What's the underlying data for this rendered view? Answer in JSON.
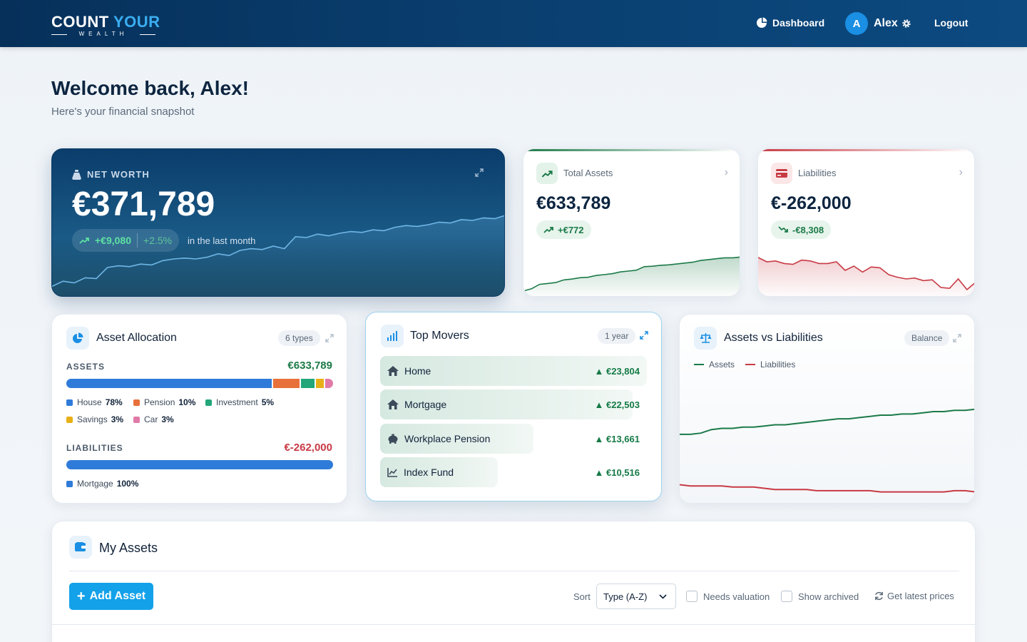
{
  "app": {
    "logo_part1": "COUNT",
    "logo_part2": "YOUR",
    "logo_sub": "WEALTH"
  },
  "nav": {
    "dashboard_label": "Dashboard",
    "avatar_letter": "A",
    "user_name": "Alex",
    "logout_label": "Logout"
  },
  "welcome": {
    "title": "Welcome back, Alex!",
    "subtitle": "Here's your financial snapshot"
  },
  "net_worth": {
    "label": "NET WORTH",
    "value": "€371,789",
    "change_abs": "+€9,080",
    "change_pct": "+2.5%",
    "period": "in the last month",
    "trend": [
      0.08,
      0.14,
      0.12,
      0.18,
      0.17,
      0.3,
      0.32,
      0.31,
      0.34,
      0.33,
      0.38,
      0.4,
      0.41,
      0.4,
      0.42,
      0.46,
      0.44,
      0.5,
      0.52,
      0.51,
      0.55,
      0.52,
      0.66,
      0.65,
      0.69,
      0.67,
      0.7,
      0.72,
      0.71,
      0.74,
      0.73,
      0.77,
      0.79,
      0.78,
      0.8,
      0.83,
      0.82,
      0.86,
      0.85,
      0.88,
      0.87,
      0.91
    ]
  },
  "total_assets": {
    "title": "Total Assets",
    "value": "€633,789",
    "change": "+€772",
    "color": "#1c7a48",
    "trend": [
      0.05,
      0.1,
      0.2,
      0.22,
      0.24,
      0.3,
      0.32,
      0.35,
      0.36,
      0.4,
      0.42,
      0.44,
      0.48,
      0.5,
      0.52,
      0.6,
      0.61,
      0.63,
      0.64,
      0.66,
      0.68,
      0.7,
      0.74,
      0.76,
      0.78,
      0.8,
      0.8,
      0.82
    ]
  },
  "liabilities": {
    "title": "Liabilities",
    "value": "€-262,000",
    "change": "-€8,308",
    "color": "#c83a44",
    "trend": [
      0.8,
      0.7,
      0.72,
      0.66,
      0.64,
      0.74,
      0.72,
      0.66,
      0.66,
      0.7,
      0.5,
      0.6,
      0.46,
      0.58,
      0.56,
      0.4,
      0.34,
      0.3,
      0.32,
      0.26,
      0.28,
      0.1,
      0.08,
      0.3,
      0.05,
      0.22
    ]
  },
  "allocation": {
    "title": "Asset Allocation",
    "types_pill": "6 types",
    "assets_label": "ASSETS",
    "assets_total": "€633,789",
    "asset_items": [
      {
        "name": "House",
        "pct": "78%",
        "value": 78,
        "color": "#2f7bd9"
      },
      {
        "name": "Pension",
        "pct": "10%",
        "value": 10,
        "color": "#e8703a"
      },
      {
        "name": "Investment",
        "pct": "5%",
        "value": 5,
        "color": "#22a67a"
      },
      {
        "name": "Savings",
        "pct": "3%",
        "value": 3,
        "color": "#e8b018"
      },
      {
        "name": "Car",
        "pct": "3%",
        "value": 3,
        "color": "#e07aa8"
      }
    ],
    "liabilities_label": "LIABILITIES",
    "liabilities_total": "€-262,000",
    "liability_items": [
      {
        "name": "Mortgage",
        "pct": "100%",
        "value": 100,
        "color": "#2f7bd9"
      }
    ]
  },
  "movers": {
    "title": "Top Movers",
    "period_pill": "1 year",
    "items": [
      {
        "name": "Home",
        "value": "▲ €23,804",
        "icon": "home-icon",
        "amount": 23804
      },
      {
        "name": "Mortgage",
        "value": "▲ €22,503",
        "icon": "home-icon",
        "amount": 22503
      },
      {
        "name": "Workplace Pension",
        "value": "▲ €13,661",
        "icon": "piggy-bank-icon",
        "amount": 13661
      },
      {
        "name": "Index Fund",
        "value": "▲ €10,516",
        "icon": "line-chart-icon",
        "amount": 10516
      }
    ]
  },
  "avl": {
    "title": "Assets vs Liabilities",
    "pill": "Balance",
    "legend_assets": "Assets",
    "legend_liabilities": "Liabilities",
    "assets_color": "#1c7a48",
    "liabilities_color": "#c83a44",
    "assets_trend": [
      0.56,
      0.56,
      0.57,
      0.6,
      0.61,
      0.61,
      0.62,
      0.62,
      0.63,
      0.64,
      0.64,
      0.65,
      0.66,
      0.67,
      0.68,
      0.69,
      0.69,
      0.7,
      0.71,
      0.72,
      0.72,
      0.73,
      0.73,
      0.74,
      0.75,
      0.75,
      0.76,
      0.76,
      0.77
    ],
    "liab_trend": [
      0.14,
      0.13,
      0.13,
      0.13,
      0.13,
      0.12,
      0.12,
      0.12,
      0.11,
      0.1,
      0.1,
      0.1,
      0.1,
      0.09,
      0.09,
      0.09,
      0.09,
      0.09,
      0.09,
      0.08,
      0.08,
      0.08,
      0.08,
      0.08,
      0.08,
      0.08,
      0.09,
      0.09,
      0.08
    ]
  },
  "my_assets": {
    "title": "My Assets",
    "add_button": "Add Asset",
    "sort_label": "Sort",
    "sort_value": "Type (A-Z)",
    "needs_valuation": "Needs valuation",
    "show_archived": "Show archived",
    "refresh_label": "Get latest prices"
  }
}
